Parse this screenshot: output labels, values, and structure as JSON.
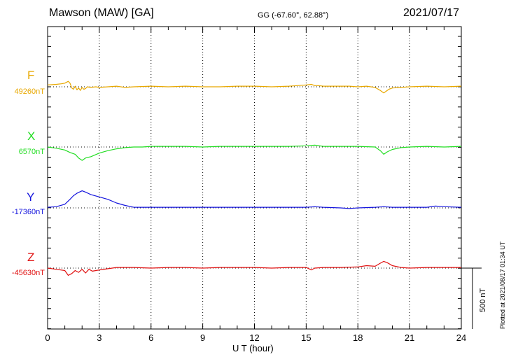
{
  "header": {
    "station": "Mawson (MAW)  [GA]",
    "coords": "GG (-67.60°,  62.88°)",
    "date": "2021/07/17"
  },
  "footer": {
    "plotted": "Plotted at 2021/08/17 01:34 UT",
    "scale": "500 nT"
  },
  "chart_data": {
    "type": "line",
    "title": "Mawson (MAW)  [GA]",
    "xlabel": "U T (hour)",
    "xlim": [
      0,
      24
    ],
    "xticks": [
      0,
      3,
      6,
      9,
      12,
      15,
      18,
      21,
      24
    ],
    "grid": true,
    "scale_bar_nT": 500,
    "colors": {
      "F": "#e8a800",
      "X": "#22dd22",
      "Y": "#1414dd",
      "Z": "#e01010"
    },
    "series": [
      {
        "name": "F",
        "baseline": "49260nT",
        "x": [
          0.0,
          0.5,
          0.8,
          1.0,
          1.2,
          1.3,
          1.4,
          1.5,
          1.6,
          1.7,
          1.8,
          1.9,
          2.0,
          2.1,
          2.2,
          2.3,
          2.5,
          2.8,
          3.0,
          3.5,
          4.0,
          4.5,
          5.0,
          6.0,
          7.0,
          8.0,
          9.0,
          10.0,
          11.0,
          12.0,
          13.0,
          14.0,
          14.5,
          15.0,
          15.3,
          15.5,
          15.7,
          16.0,
          16.5,
          17.0,
          17.5,
          18.0,
          18.5,
          19.0,
          19.3,
          19.5,
          19.6,
          19.8,
          20.0,
          20.5,
          21.0,
          22.0,
          23.0,
          24.0
        ],
        "y": [
          15,
          20,
          25,
          30,
          45,
          30,
          -10,
          -20,
          5,
          -25,
          -10,
          -30,
          -5,
          -20,
          -15,
          0,
          -5,
          0,
          -5,
          0,
          5,
          -5,
          0,
          5,
          0,
          5,
          0,
          0,
          5,
          5,
          0,
          5,
          10,
          15,
          20,
          10,
          10,
          5,
          5,
          5,
          5,
          0,
          5,
          -5,
          -30,
          -50,
          -40,
          -20,
          -10,
          -5,
          0,
          5,
          0,
          5
        ]
      },
      {
        "name": "X",
        "baseline": "6570nT",
        "x": [
          0.0,
          0.5,
          1.0,
          1.3,
          1.6,
          1.8,
          2.0,
          2.2,
          2.5,
          3.0,
          3.5,
          4.0,
          4.5,
          5.0,
          5.5,
          6.0,
          7.0,
          8.0,
          9.0,
          10.0,
          11.0,
          12.0,
          13.0,
          14.0,
          15.0,
          15.5,
          16.0,
          17.0,
          18.0,
          19.0,
          19.3,
          19.5,
          19.7,
          20.0,
          20.5,
          21.0,
          22.0,
          23.0,
          24.0
        ],
        "y": [
          0,
          -10,
          -25,
          -45,
          -60,
          -90,
          -110,
          -90,
          -80,
          -50,
          -30,
          -15,
          -5,
          0,
          0,
          5,
          5,
          5,
          0,
          5,
          5,
          5,
          5,
          5,
          10,
          15,
          5,
          5,
          5,
          0,
          -30,
          -60,
          -40,
          -20,
          -5,
          0,
          5,
          0,
          5
        ]
      },
      {
        "name": "Y",
        "baseline": "-17360nT",
        "x": [
          0.0,
          0.5,
          1.0,
          1.3,
          1.5,
          1.7,
          2.0,
          2.2,
          2.5,
          3.0,
          3.5,
          4.0,
          4.5,
          5.0,
          6.0,
          7.0,
          8.0,
          9.0,
          10.0,
          11.0,
          12.0,
          13.0,
          14.0,
          15.0,
          15.5,
          16.0,
          17.0,
          17.5,
          18.0,
          19.0,
          19.5,
          20.0,
          21.0,
          22.0,
          22.5,
          23.0,
          24.0
        ],
        "y": [
          5,
          10,
          30,
          70,
          100,
          120,
          140,
          130,
          110,
          90,
          70,
          40,
          20,
          5,
          5,
          5,
          5,
          5,
          5,
          5,
          5,
          5,
          5,
          5,
          10,
          5,
          0,
          -5,
          0,
          5,
          10,
          5,
          5,
          5,
          15,
          10,
          5
        ]
      },
      {
        "name": "Z",
        "baseline": "-45630nT",
        "x": [
          0.0,
          0.5,
          1.0,
          1.2,
          1.4,
          1.6,
          1.8,
          2.0,
          2.2,
          2.4,
          2.6,
          3.0,
          3.5,
          4.0,
          5.0,
          6.0,
          7.0,
          8.0,
          9.0,
          10.0,
          11.0,
          12.0,
          13.0,
          14.0,
          15.0,
          15.3,
          15.5,
          16.0,
          17.0,
          18.0,
          18.5,
          19.0,
          19.3,
          19.5,
          19.7,
          20.0,
          20.5,
          21.0,
          22.0,
          23.0,
          24.0
        ],
        "y": [
          0,
          -10,
          -20,
          -60,
          -45,
          -20,
          -35,
          -10,
          -40,
          -10,
          -25,
          -15,
          -5,
          5,
          5,
          0,
          5,
          5,
          0,
          5,
          5,
          5,
          0,
          5,
          5,
          -15,
          0,
          5,
          5,
          10,
          20,
          15,
          40,
          55,
          45,
          20,
          5,
          0,
          5,
          5,
          5
        ]
      }
    ]
  }
}
